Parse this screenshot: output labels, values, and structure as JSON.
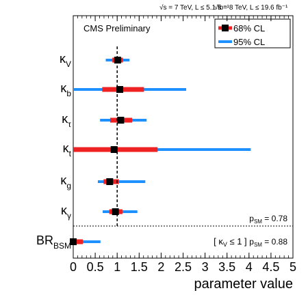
{
  "chart_data": {
    "type": "forest",
    "header_left": "√s = 7 TeV, L ≤ 5.1 fb⁻¹",
    "header_right": "√s = 8 TeV, L ≤ 19.6 fb⁻¹",
    "watermark": "CMS Preliminary",
    "xlabel": "parameter value",
    "xlim": [
      0,
      5
    ],
    "xticks": [
      0,
      0.5,
      1,
      1.5,
      2,
      2.5,
      3,
      3.5,
      4,
      4.5,
      5
    ],
    "xtick_labels": [
      "0",
      "0.5",
      "1",
      "1.5",
      "2",
      "2.5",
      "3",
      "3.5",
      "4",
      "4.5",
      "5"
    ],
    "reference_line": 1,
    "legend": [
      {
        "label": "68% CL",
        "color": "#ee2222"
      },
      {
        "label": "95% CL",
        "color": "#1e90ff"
      }
    ],
    "legend_position": "top-right",
    "colors": {
      "cl68": "#ee2222",
      "cl95": "#1e90ff",
      "central": "#000000"
    },
    "parameters": [
      {
        "symbol": "κ",
        "sub": "V",
        "central": 1.01,
        "cl68": [
          0.89,
          1.13
        ],
        "cl95": [
          0.74,
          1.28
        ]
      },
      {
        "symbol": "κ",
        "sub": "b",
        "central": 1.06,
        "cl68": [
          0.66,
          1.61
        ],
        "cl95": [
          0.0,
          2.57
        ]
      },
      {
        "symbol": "κ",
        "sub": "τ",
        "central": 1.08,
        "cl68": [
          0.84,
          1.34
        ],
        "cl95": [
          0.61,
          1.67
        ]
      },
      {
        "symbol": "κ",
        "sub": "t",
        "central": 0.93,
        "cl68": [
          0.0,
          1.92
        ],
        "cl95": [
          0.0,
          4.04
        ]
      },
      {
        "symbol": "κ",
        "sub": "g",
        "central": 0.83,
        "cl68": [
          0.69,
          1.04
        ],
        "cl95": [
          0.56,
          1.64
        ]
      },
      {
        "symbol": "κ",
        "sub": "γ",
        "central": 0.96,
        "cl68": [
          0.82,
          1.12
        ],
        "cl95": [
          0.67,
          1.46
        ]
      },
      {
        "symbol": "BR",
        "sub": "BSM",
        "central": 0.0,
        "cl68": [
          0.0,
          0.22
        ],
        "cl95": [
          0.0,
          0.62
        ]
      }
    ],
    "annotations": [
      {
        "text": "p",
        "sub": "SM",
        "value": "= 0.78",
        "prefix": ""
      },
      {
        "text": "p",
        "sub": "SM",
        "value": "= 0.88",
        "prefix": "[ κ",
        "prefix_sub": "V",
        "prefix_rest": "≤ 1 ]"
      }
    ]
  }
}
